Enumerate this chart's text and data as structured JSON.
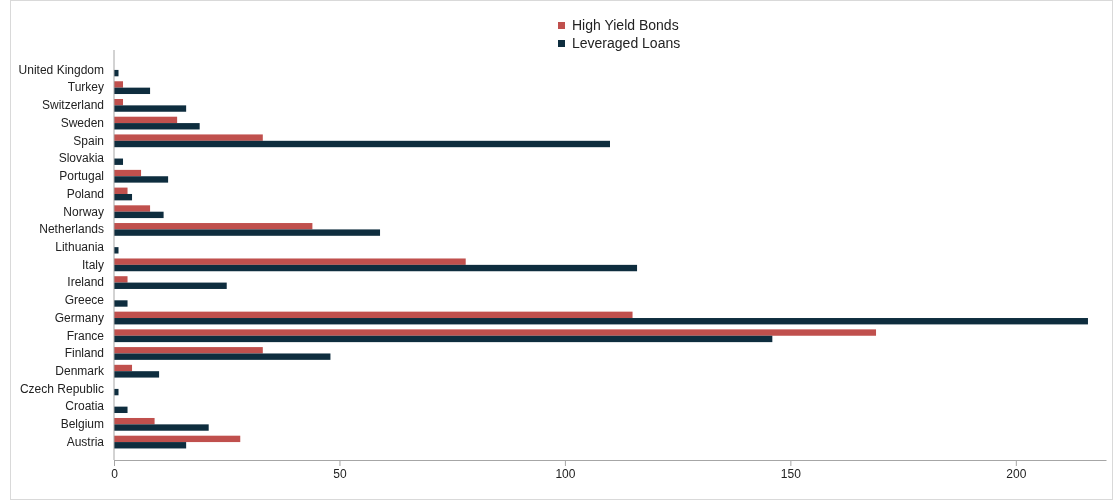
{
  "chart_data": {
    "type": "bar",
    "orientation": "horizontal",
    "legend": "top",
    "categories": [
      "United Kingdom",
      "Turkey",
      "Switzerland",
      "Sweden",
      "Spain",
      "Slovakia",
      "Portugal",
      "Poland",
      "Norway",
      "Netherlands",
      "Lithuania",
      "Italy",
      "Ireland",
      "Greece",
      "Germany",
      "France",
      "Finland",
      "Denmark",
      "Czech Republic",
      "Croatia",
      "Belgium",
      "Austria"
    ],
    "series": [
      {
        "name": "High Yield Bonds",
        "color": "#c0504d",
        "values": [
          null,
          2,
          2,
          14,
          33,
          null,
          6,
          3,
          8,
          44,
          null,
          78,
          3,
          null,
          115,
          169,
          33,
          4,
          null,
          null,
          9,
          28
        ]
      },
      {
        "name": "Leveraged Loans",
        "color": "#0e2d3e",
        "values": [
          1,
          8,
          16,
          19,
          110,
          2,
          12,
          4,
          11,
          59,
          1,
          116,
          25,
          3,
          216,
          146,
          48,
          10,
          1,
          3,
          21,
          16
        ]
      }
    ],
    "xlim": [
      0,
      220
    ],
    "xticks": [
      0,
      50,
      100,
      150,
      200
    ]
  }
}
